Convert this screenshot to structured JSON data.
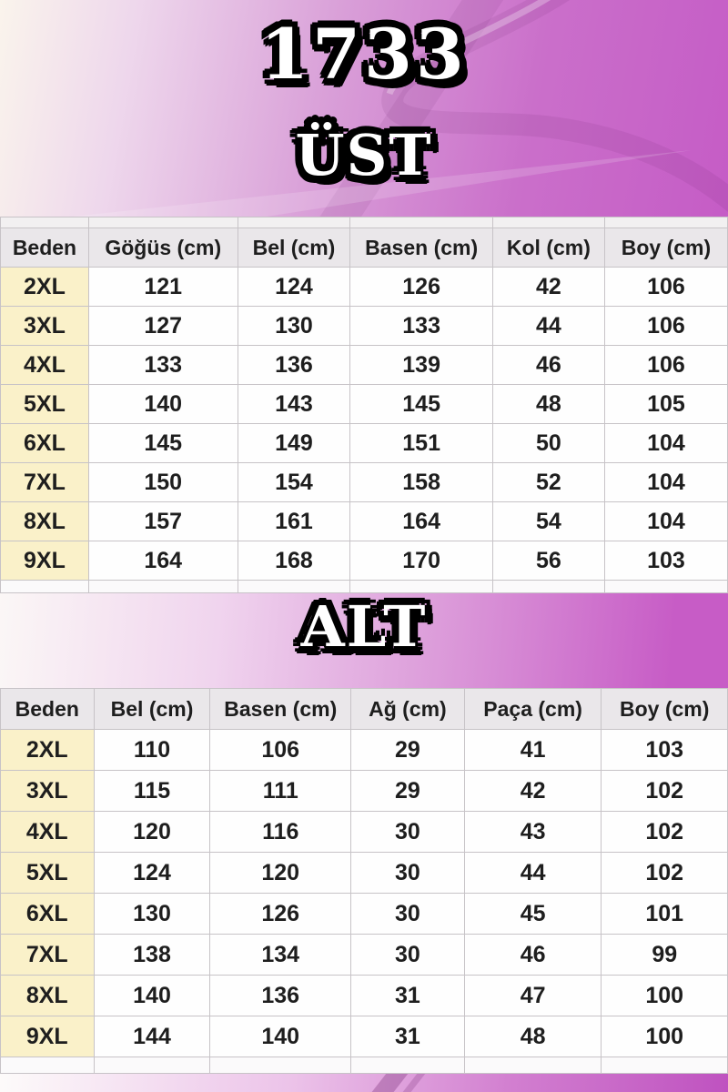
{
  "title": "1733",
  "colors": {
    "magenta": "#c75cc6",
    "size_column_cream": "#faf1c9",
    "header_gray": "#eae7ea",
    "cell_border": "#c7c3c7",
    "text": "#1e1e1e",
    "title_fill": "#ffffff",
    "title_outline": "#000000"
  },
  "sections": [
    {
      "heading": "ÜST",
      "table": {
        "headers": [
          "Beden",
          "Göğüs (cm)",
          "Bel (cm)",
          "Basen (cm)",
          "Kol (cm)",
          "Boy (cm)"
        ],
        "rows": [
          {
            "size": "2XL",
            "values": [
              121,
              124,
              126,
              42,
              106
            ]
          },
          {
            "size": "3XL",
            "values": [
              127,
              130,
              133,
              44,
              106
            ]
          },
          {
            "size": "4XL",
            "values": [
              133,
              136,
              139,
              46,
              106
            ]
          },
          {
            "size": "5XL",
            "values": [
              140,
              143,
              145,
              48,
              105
            ]
          },
          {
            "size": "6XL",
            "values": [
              145,
              149,
              151,
              50,
              104
            ]
          },
          {
            "size": "7XL",
            "values": [
              150,
              154,
              158,
              52,
              104
            ]
          },
          {
            "size": "8XL",
            "values": [
              157,
              161,
              164,
              54,
              104
            ]
          },
          {
            "size": "9XL",
            "values": [
              164,
              168,
              170,
              56,
              103
            ]
          }
        ]
      }
    },
    {
      "heading": "ALT",
      "table": {
        "headers": [
          "Beden",
          "Bel (cm)",
          "Basen (cm)",
          "Ağ (cm)",
          "Paça (cm)",
          "Boy (cm)"
        ],
        "rows": [
          {
            "size": "2XL",
            "values": [
              110,
              106,
              29,
              41,
              103
            ]
          },
          {
            "size": "3XL",
            "values": [
              115,
              111,
              29,
              42,
              102
            ]
          },
          {
            "size": "4XL",
            "values": [
              120,
              116,
              30,
              43,
              102
            ]
          },
          {
            "size": "5XL",
            "values": [
              124,
              120,
              30,
              44,
              102
            ]
          },
          {
            "size": "6XL",
            "values": [
              130,
              126,
              30,
              45,
              101
            ]
          },
          {
            "size": "7XL",
            "values": [
              138,
              134,
              30,
              46,
              99
            ]
          },
          {
            "size": "8XL",
            "values": [
              140,
              136,
              31,
              47,
              100
            ]
          },
          {
            "size": "9XL",
            "values": [
              144,
              140,
              31,
              48,
              100
            ]
          }
        ]
      }
    }
  ]
}
